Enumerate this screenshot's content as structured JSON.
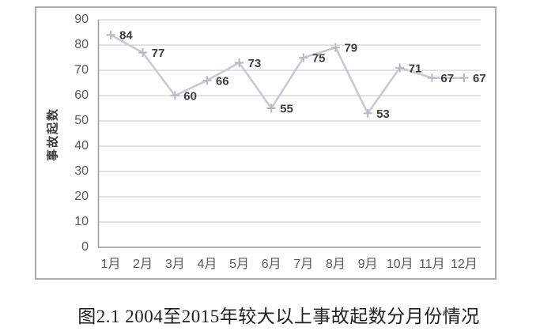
{
  "chart_data": {
    "type": "line",
    "categories": [
      "1月",
      "2月",
      "3月",
      "4月",
      "5月",
      "6月",
      "7月",
      "8月",
      "9月",
      "10月",
      "11月",
      "12月"
    ],
    "values": [
      84,
      77,
      60,
      66,
      73,
      55,
      75,
      79,
      53,
      71,
      67,
      67
    ],
    "data_labels": [
      84,
      77,
      60,
      66,
      73,
      55,
      75,
      79,
      53,
      71,
      67,
      67
    ],
    "title": "",
    "xlabel": "",
    "ylabel": "事故起数",
    "ylim": [
      0,
      90
    ],
    "yticks": [
      0,
      10,
      20,
      30,
      40,
      50,
      60,
      70,
      80,
      90
    ],
    "grid": true,
    "legend": "none",
    "marker": "plus"
  },
  "caption": "图2.1 2004至2015年较大以上事故起数分月份情况",
  "colors": {
    "line": "#c7cad3",
    "marker": "#b6b9c3",
    "grid": "#c6c6c6",
    "axis": "#9c9c9c",
    "box_border": "#adadad",
    "data_label": "#3d3d3d",
    "tick_label": "#595959",
    "caption_text": "#1e1e1e"
  }
}
